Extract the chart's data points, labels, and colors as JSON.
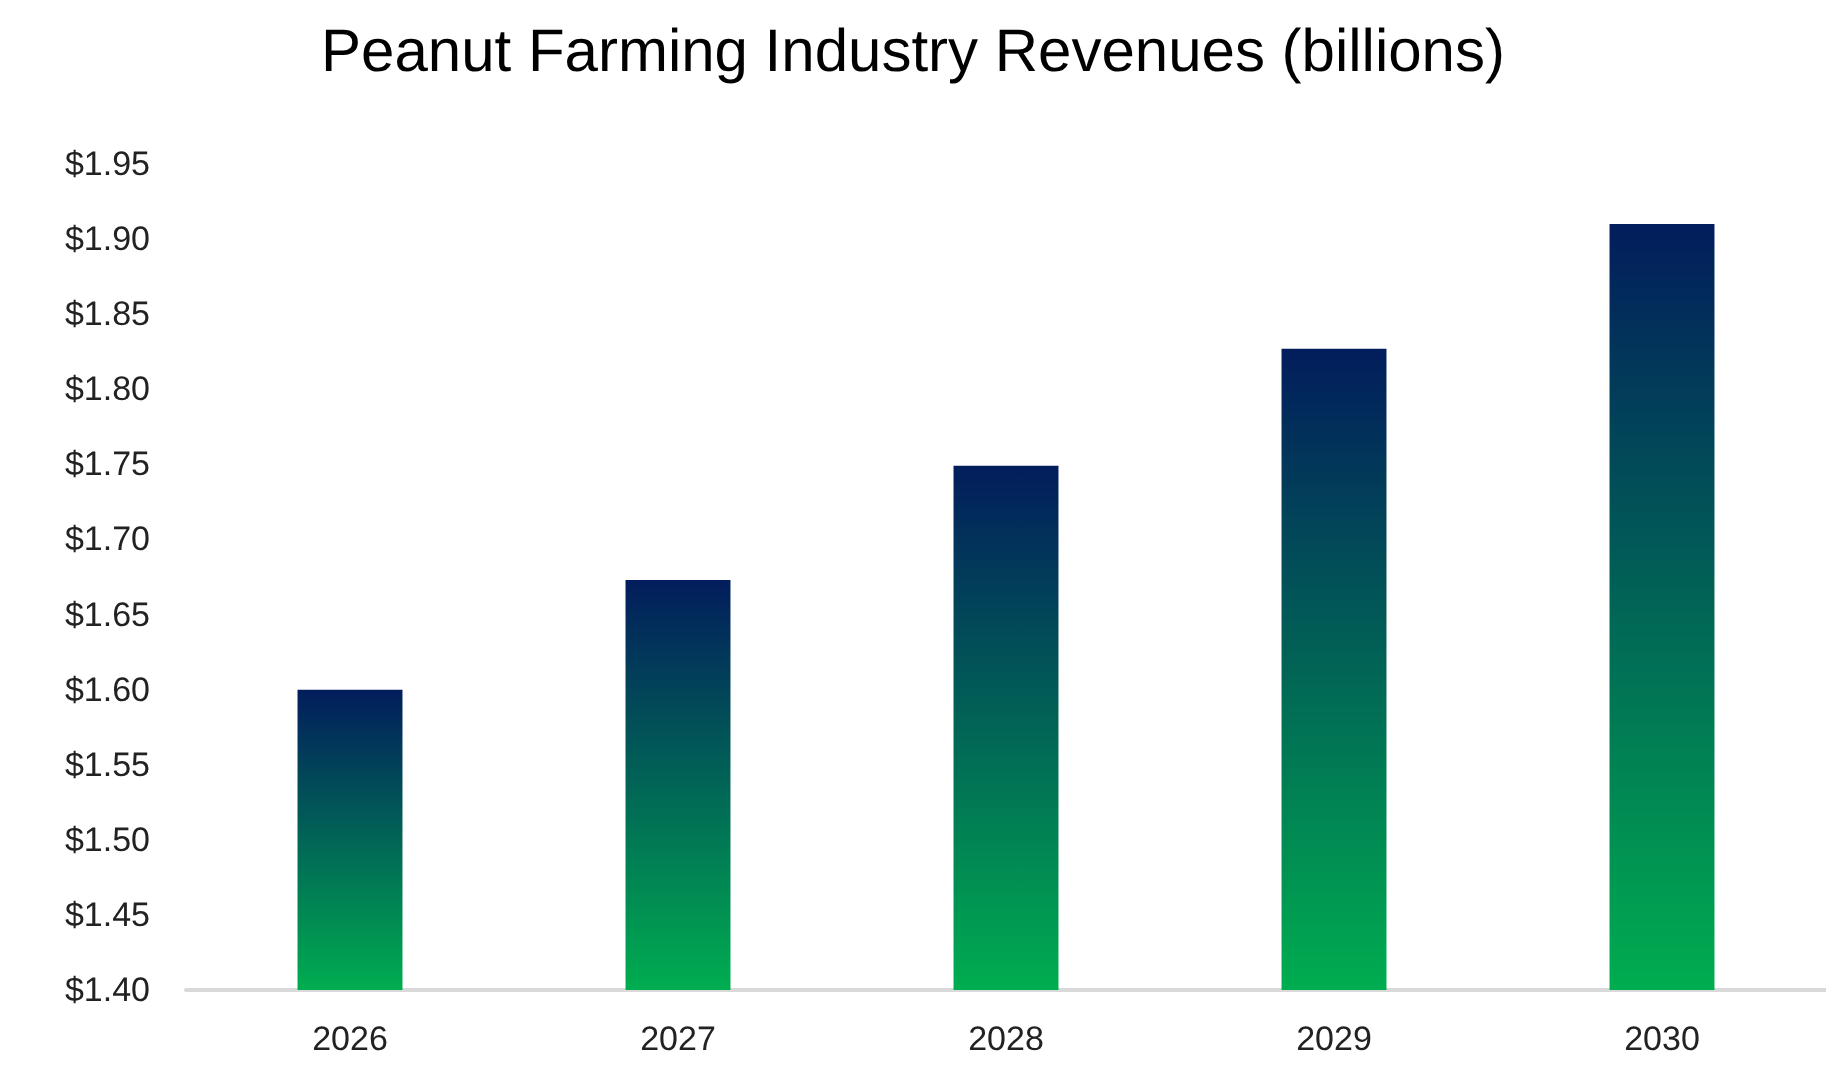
{
  "chart_data": {
    "type": "bar",
    "title": "Peanut Farming Industry Revenues (billions)",
    "categories": [
      "2026",
      "2027",
      "2028",
      "2029",
      "2030"
    ],
    "values": [
      1.6,
      1.673,
      1.749,
      1.827,
      1.91
    ],
    "color": "#00ad50",
    "ylim": [
      1.4,
      1.95
    ],
    "yticks": [
      {
        "value": 1.4,
        "label": "$1.40"
      },
      {
        "value": 1.45,
        "label": "$1.45"
      },
      {
        "value": 1.5,
        "label": "$1.50"
      },
      {
        "value": 1.55,
        "label": "$1.55"
      },
      {
        "value": 1.6,
        "label": "$1.60"
      },
      {
        "value": 1.65,
        "label": "$1.65"
      },
      {
        "value": 1.7,
        "label": "$1.70"
      },
      {
        "value": 1.75,
        "label": "$1.75"
      },
      {
        "value": 1.8,
        "label": "$1.80"
      },
      {
        "value": 1.85,
        "label": "$1.85"
      },
      {
        "value": 1.9,
        "label": "$1.90"
      },
      {
        "value": 1.95,
        "label": "$1.95"
      }
    ]
  }
}
